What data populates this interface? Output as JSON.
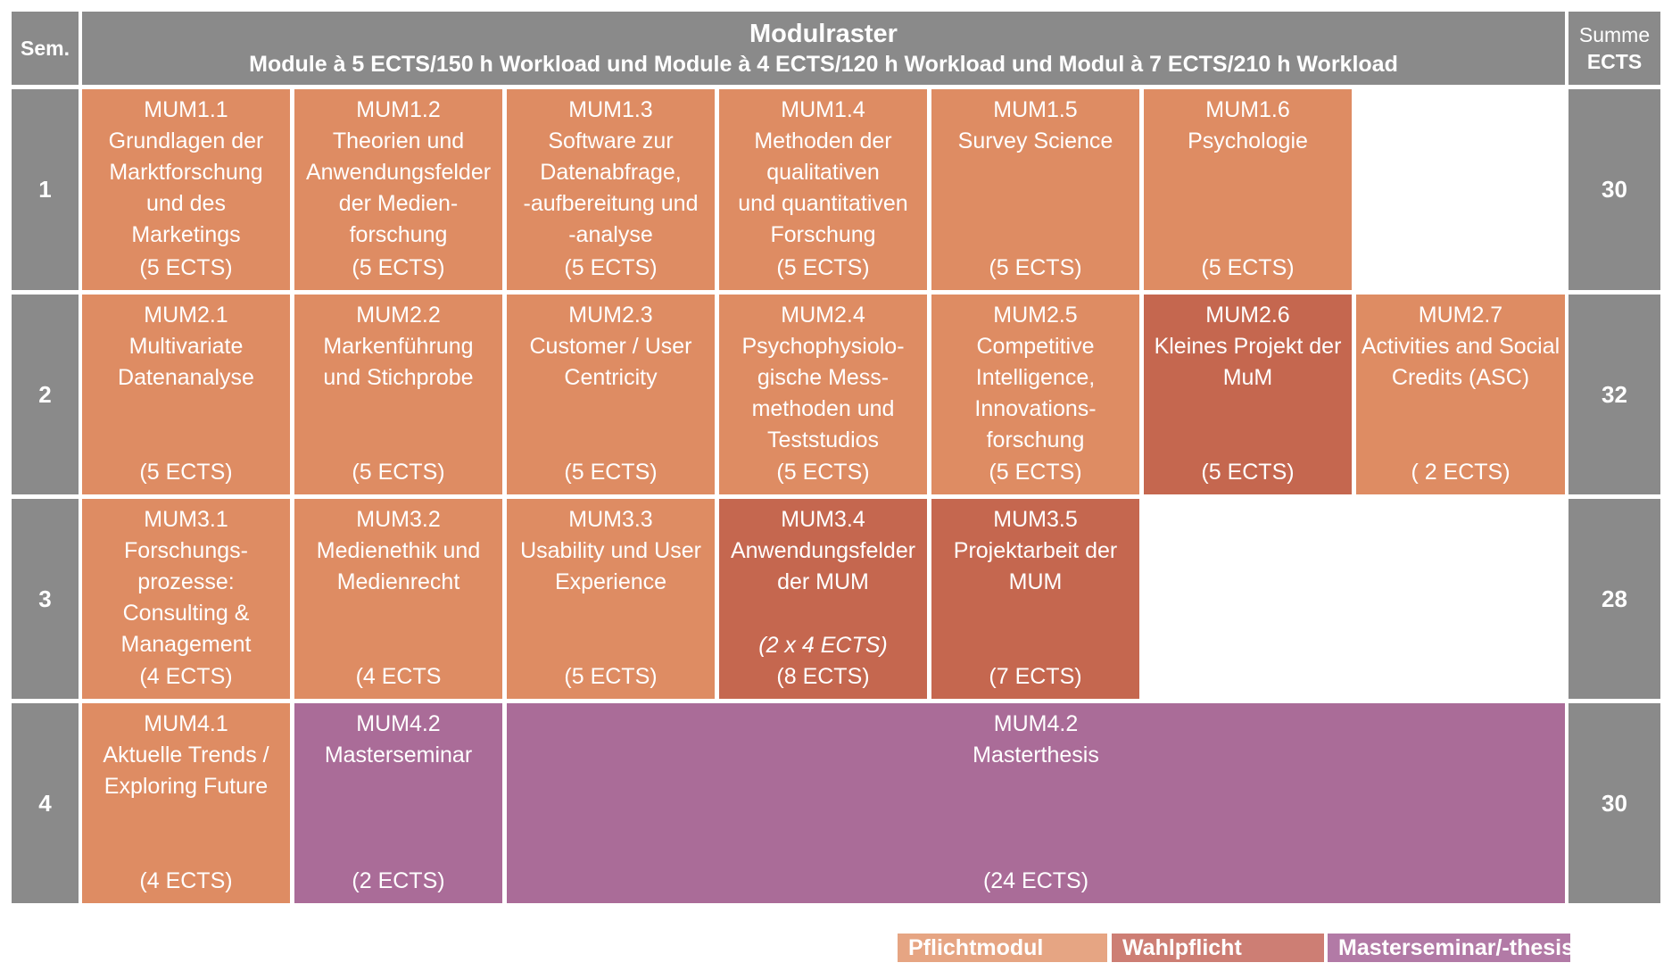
{
  "header": {
    "sem_label": "Sem.",
    "title": "Modulraster",
    "subtitle": "Module à 5 ECTS/150 h Workload und Module à 4 ECTS/120 h Workload und Modul à 7 ECTS/210 h Workload",
    "sum_label_1": "Summe",
    "sum_label_2": "ECTS"
  },
  "semesters": [
    {
      "number": "1",
      "total": "30",
      "modules": [
        {
          "code": "MUM1.1",
          "lines": [
            "Grundlagen der",
            "Marktforschung",
            "und des",
            "Marketings"
          ],
          "ects": "(5 ECTS)",
          "type": "pflicht"
        },
        {
          "code": "MUM1.2",
          "lines": [
            "Theorien und",
            "Anwendungsfelder",
            "der Medien-",
            "forschung"
          ],
          "ects": "(5 ECTS)",
          "type": "pflicht"
        },
        {
          "code": "MUM1.3",
          "lines": [
            "Software zur",
            "Datenabfrage,",
            "-aufbereitung und",
            "-analyse"
          ],
          "ects": "(5 ECTS)",
          "type": "pflicht"
        },
        {
          "code": "MUM1.4",
          "lines": [
            "Methoden der",
            "qualitativen",
            "und quantitativen",
            "Forschung"
          ],
          "ects": "(5 ECTS)",
          "type": "pflicht"
        },
        {
          "code": "MUM1.5",
          "lines": [
            "Survey Science"
          ],
          "ects": "(5 ECTS)",
          "type": "pflicht"
        },
        {
          "code": "MUM1.6",
          "lines": [
            "Psychologie"
          ],
          "ects": "(5 ECTS)",
          "type": "pflicht"
        }
      ]
    },
    {
      "number": "2",
      "total": "32",
      "modules": [
        {
          "code": "MUM2.1",
          "lines": [
            "Multivariate",
            "Datenanalyse"
          ],
          "ects": "(5 ECTS)",
          "type": "pflicht"
        },
        {
          "code": "MUM2.2",
          "lines": [
            "Markenführung",
            "und Stichprobe"
          ],
          "ects": "(5 ECTS)",
          "type": "pflicht"
        },
        {
          "code": "MUM2.3",
          "lines": [
            "Customer / User",
            "Centricity"
          ],
          "ects": "(5 ECTS)",
          "type": "pflicht"
        },
        {
          "code": "MUM2.4",
          "lines": [
            "Psychophysiolo-",
            "gische Mess-",
            "methoden und",
            "Teststudios"
          ],
          "ects": "(5 ECTS)",
          "type": "pflicht"
        },
        {
          "code": "MUM2.5",
          "lines": [
            "Competitive",
            "Intelligence,",
            "Innovations-",
            "forschung"
          ],
          "ects": "(5 ECTS)",
          "type": "pflicht"
        },
        {
          "code": "MUM2.6",
          "lines": [
            "Kleines Projekt der",
            "MuM"
          ],
          "ects": "(5 ECTS)",
          "type": "wahl"
        },
        {
          "code": "MUM2.7",
          "lines": [
            "Activities and Social",
            "Credits (ASC)"
          ],
          "ects": "( 2 ECTS)",
          "type": "pflicht"
        }
      ]
    },
    {
      "number": "3",
      "total": "28",
      "modules": [
        {
          "code": "MUM3.1",
          "lines": [
            "Forschungs-",
            "prozesse:",
            "Consulting &",
            "Management"
          ],
          "ects": "(4 ECTS)",
          "type": "pflicht"
        },
        {
          "code": "MUM3.2",
          "lines": [
            "Medienethik und",
            "Medienrecht"
          ],
          "ects": "(4 ECTS",
          "type": "pflicht"
        },
        {
          "code": "MUM3.3",
          "lines": [
            "Usability und User",
            "Experience"
          ],
          "ects": "(5 ECTS)",
          "type": "pflicht"
        },
        {
          "code": "MUM3.4",
          "lines": [
            "Anwendungsfelder",
            "der MUM"
          ],
          "note": "(2 x 4 ECTS)",
          "ects": "(8 ECTS)",
          "type": "wahl"
        },
        {
          "code": "MUM3.5",
          "lines": [
            "Projektarbeit der",
            "MUM"
          ],
          "ects": "(7 ECTS)",
          "type": "wahl"
        }
      ]
    },
    {
      "number": "4",
      "total": "30",
      "modules": [
        {
          "code": "MUM4.1",
          "lines": [
            "Aktuelle Trends /",
            "Exploring Future"
          ],
          "ects": "(4 ECTS)",
          "type": "pflicht"
        },
        {
          "code": "MUM4.2",
          "lines": [
            "Masterseminar"
          ],
          "ects": "(2 ECTS)",
          "type": "master"
        },
        {
          "code": "MUM4.2",
          "lines": [
            "Masterthesis"
          ],
          "ects": "(24 ECTS)",
          "type": "master"
        }
      ]
    }
  ],
  "legend": {
    "pflicht": "Pflichtmodul",
    "wahl": "Wahlpflicht",
    "master": "Masterseminar/-thesis"
  },
  "colors": {
    "header_gray": "#8a8a8a",
    "pflicht": "#de8c63",
    "wahl": "#c5674f",
    "master": "#aa6c98"
  }
}
